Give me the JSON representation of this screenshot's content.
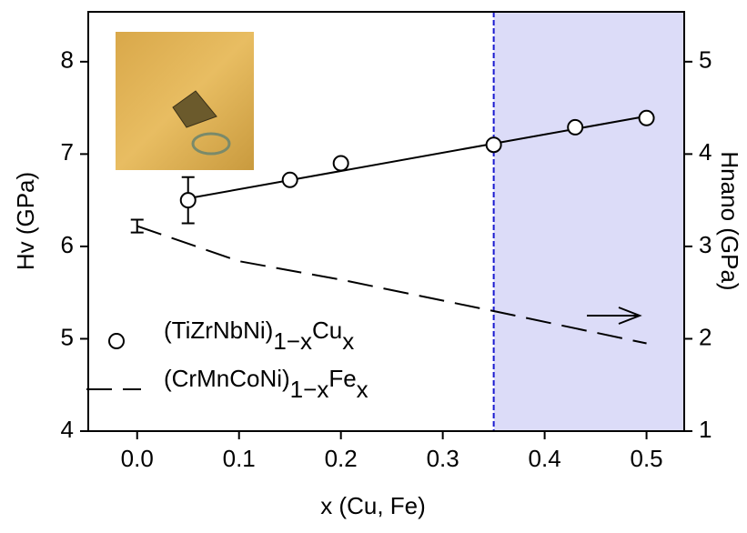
{
  "chart_data": {
    "type": "scatter",
    "xlabel": "x (Cu, Fe)",
    "ylabel": "Hv (GPa)",
    "y2label": "Hnano (GPa)",
    "xlim": [
      -0.048,
      0.537
    ],
    "ylim": [
      4,
      8.54
    ],
    "y2lim": [
      1,
      5.54
    ],
    "xticks": [
      {
        "value": 0,
        "label": "0.0"
      },
      0.1,
      0.2,
      0.3,
      0.4,
      0.5
    ],
    "yticks": [
      4,
      5,
      6,
      7,
      8
    ],
    "y2ticks": [
      1,
      2,
      3,
      4,
      5
    ],
    "shaded_from": 0.35,
    "shade_color": "#dcdcf8",
    "vline_color": "#1a1ad0",
    "series": [
      {
        "name": "(TiZrNbNi)1−xCux",
        "color": "#000000",
        "axis": "y",
        "marker": "circle",
        "x": [
          0.05,
          0.15,
          0.2,
          0.35,
          0.43,
          0.5
        ],
        "values": [
          6.5,
          6.72,
          6.9,
          7.1,
          7.29,
          7.39
        ],
        "errors": [
          0.25,
          null,
          null,
          null,
          null,
          null
        ],
        "fit": {
          "x": [
            0.05,
            0.5
          ],
          "values": [
            6.52,
            7.41
          ]
        }
      },
      {
        "name": "(CrMnCoNi)1−xFex",
        "color": "#000000",
        "axis": "y2",
        "marker": "dashed",
        "x": [
          0,
          0.1,
          0.2,
          0.35,
          0.5
        ],
        "values": [
          3.22,
          2.84,
          2.64,
          2.3,
          1.95
        ],
        "errors": [
          0.07,
          null,
          null,
          null,
          null
        ]
      }
    ]
  }
}
